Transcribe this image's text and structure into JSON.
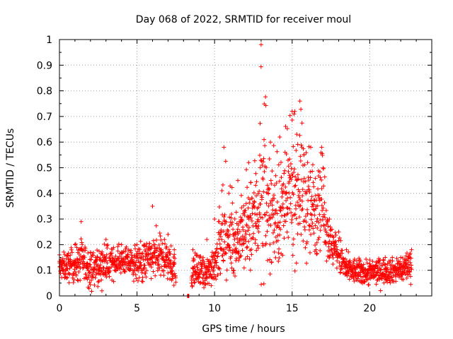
{
  "chart_data": {
    "type": "scatter",
    "title": "Day 068 of 2022, SRMTID for receiver moul",
    "xlabel": "GPS time / hours",
    "ylabel": "SRMTID / TECUs",
    "xlim": [
      0,
      24
    ],
    "ylim": [
      0,
      1
    ],
    "xticks": [
      0,
      5,
      10,
      15,
      20
    ],
    "yticks": [
      0,
      0.1,
      0.2,
      0.3,
      0.4,
      0.5,
      0.6,
      0.7,
      0.8,
      0.9,
      1
    ],
    "grid": true,
    "marker": "plus",
    "color": "#ff0000",
    "series": [
      {
        "name": "SRMTID",
        "envelope": [
          {
            "x": 0.0,
            "center": 0.11,
            "spread": 0.03,
            "max": 0.16
          },
          {
            "x": 1.0,
            "center": 0.12,
            "spread": 0.04,
            "max": 0.2
          },
          {
            "x": 1.4,
            "center": 0.14,
            "spread": 0.05,
            "max": 0.29
          },
          {
            "x": 2.0,
            "center": 0.1,
            "spread": 0.04,
            "max": 0.17
          },
          {
            "x": 3.0,
            "center": 0.12,
            "spread": 0.04,
            "max": 0.22
          },
          {
            "x": 4.0,
            "center": 0.14,
            "spread": 0.03,
            "max": 0.2
          },
          {
            "x": 5.0,
            "center": 0.12,
            "spread": 0.04,
            "max": 0.2
          },
          {
            "x": 6.0,
            "center": 0.15,
            "spread": 0.05,
            "max": 0.35
          },
          {
            "x": 7.0,
            "center": 0.14,
            "spread": 0.05,
            "max": 0.24
          },
          {
            "x": 7.4,
            "center": 0.1,
            "spread": 0.04,
            "max": 0.18
          },
          {
            "x": 8.3,
            "center": 0.0,
            "spread": 0.0,
            "max": 0.0
          },
          {
            "x": 8.6,
            "center": 0.1,
            "spread": 0.04,
            "max": 0.18
          },
          {
            "x": 9.5,
            "center": 0.08,
            "spread": 0.04,
            "max": 0.22
          },
          {
            "x": 10.0,
            "center": 0.14,
            "spread": 0.05,
            "max": 0.3
          },
          {
            "x": 10.6,
            "center": 0.22,
            "spread": 0.08,
            "max": 0.58
          },
          {
            "x": 11.5,
            "center": 0.22,
            "spread": 0.08,
            "max": 0.45
          },
          {
            "x": 12.2,
            "center": 0.26,
            "spread": 0.1,
            "max": 0.52
          },
          {
            "x": 13.0,
            "center": 0.38,
            "spread": 0.17,
            "max": 0.98
          },
          {
            "x": 13.6,
            "center": 0.33,
            "spread": 0.12,
            "max": 0.6
          },
          {
            "x": 14.2,
            "center": 0.3,
            "spread": 0.12,
            "max": 0.62
          },
          {
            "x": 15.0,
            "center": 0.42,
            "spread": 0.16,
            "max": 0.72
          },
          {
            "x": 15.5,
            "center": 0.45,
            "spread": 0.16,
            "max": 0.76
          },
          {
            "x": 16.2,
            "center": 0.32,
            "spread": 0.12,
            "max": 0.58
          },
          {
            "x": 16.9,
            "center": 0.4,
            "spread": 0.12,
            "max": 0.58
          },
          {
            "x": 17.4,
            "center": 0.21,
            "spread": 0.05,
            "max": 0.3
          },
          {
            "x": 18.0,
            "center": 0.16,
            "spread": 0.05,
            "max": 0.25
          },
          {
            "x": 18.5,
            "center": 0.1,
            "spread": 0.03,
            "max": 0.18
          },
          {
            "x": 20.0,
            "center": 0.09,
            "spread": 0.03,
            "max": 0.14
          },
          {
            "x": 21.0,
            "center": 0.1,
            "spread": 0.03,
            "max": 0.15
          },
          {
            "x": 22.0,
            "center": 0.1,
            "spread": 0.03,
            "max": 0.15
          },
          {
            "x": 22.7,
            "center": 0.13,
            "spread": 0.04,
            "max": 0.18
          }
        ],
        "gaps": [
          [
            7.5,
            8.25
          ],
          [
            8.35,
            8.5
          ]
        ]
      }
    ]
  }
}
